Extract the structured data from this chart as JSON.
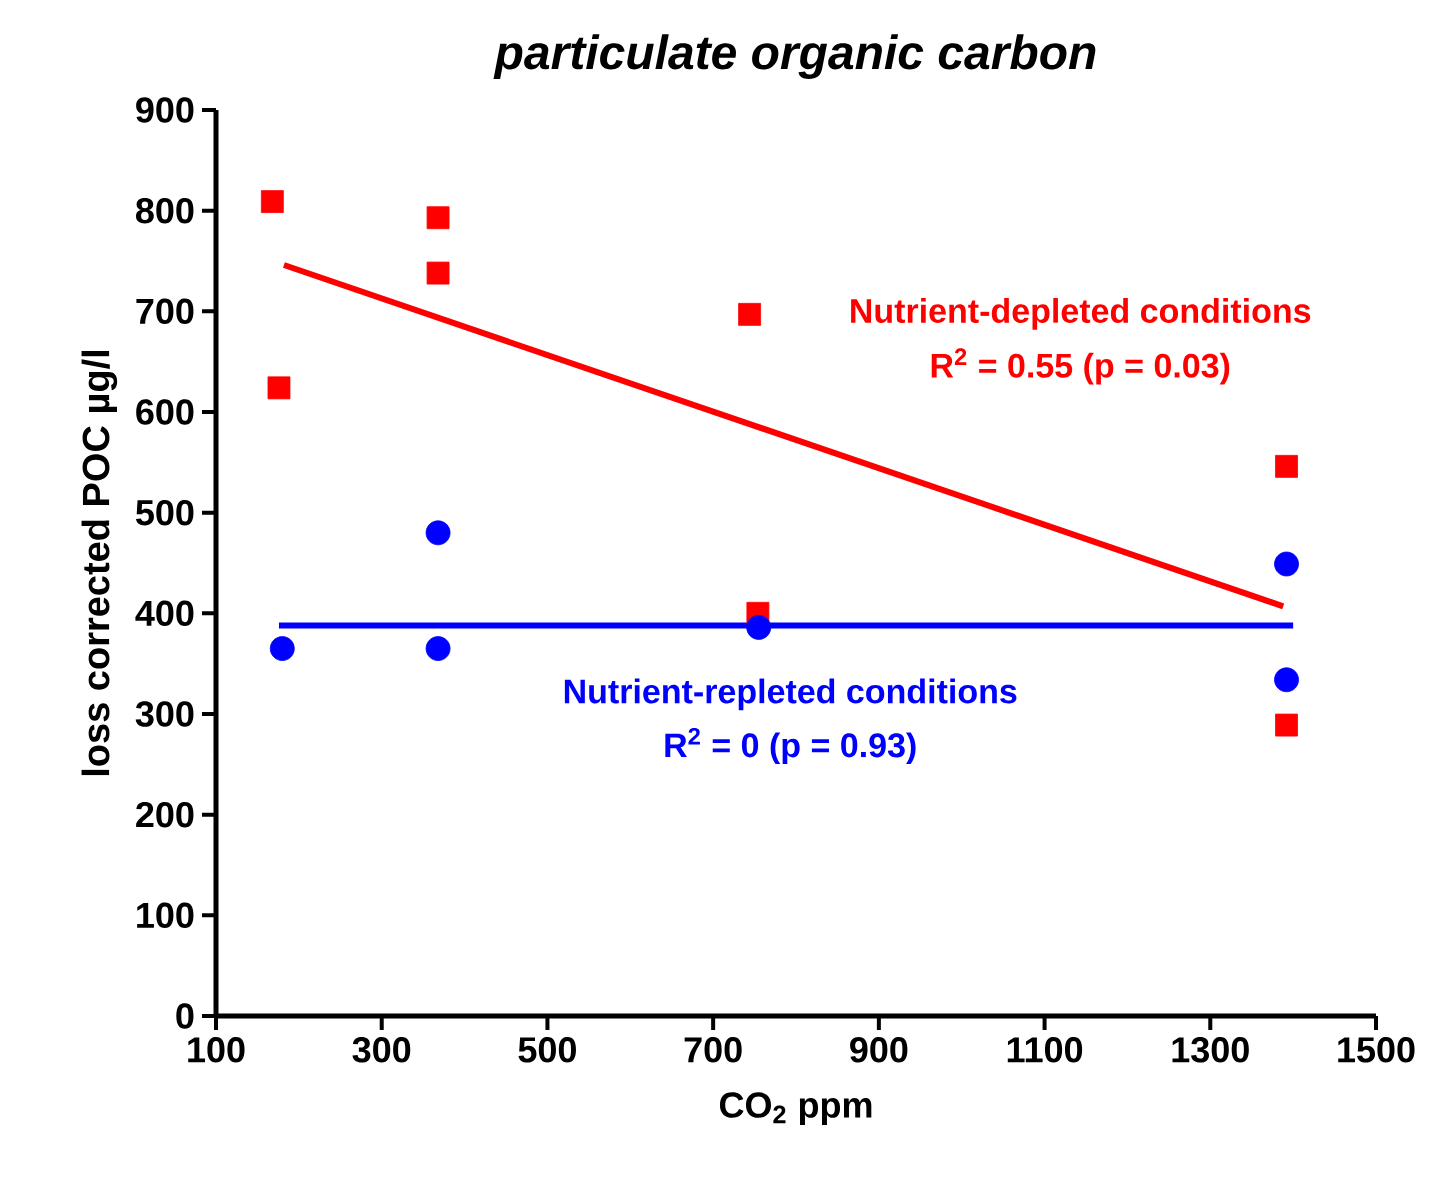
{
  "chart_data": {
    "type": "scatter",
    "title": "particulate organic carbon",
    "xlabel": "CO$_{2}$ ppm",
    "ylabel": "loss corrected POC µg/l",
    "xlim": [
      100,
      1500
    ],
    "xticks": [
      100,
      300,
      500,
      700,
      900,
      1100,
      1300,
      1500
    ],
    "ylim": [
      0,
      900
    ],
    "yticks": [
      0,
      100,
      200,
      300,
      400,
      500,
      600,
      700,
      800,
      900
    ],
    "series": [
      {
        "marker": "square",
        "color": "#ff0000",
        "x": [
          168,
          176,
          368,
          368,
          744,
          754,
          1392,
          1392
        ],
        "values": [
          809,
          624,
          793,
          738,
          697,
          400,
          546,
          289
        ]
      },
      {
        "marker": "circle",
        "color": "#0000ff",
        "x": [
          180,
          368,
          368,
          755,
          1392,
          1392
        ],
        "values": [
          365,
          480,
          365,
          386,
          449,
          334
        ]
      },
      {
        "type": "line",
        "marker": "none",
        "color": "#ff0000",
        "x": [
          182,
          1388
        ],
        "values": [
          746,
          407
        ]
      },
      {
        "type": "line",
        "marker": "none",
        "color": "#0000ff",
        "x": [
          176,
          1400
        ],
        "values": [
          388,
          388
        ]
      }
    ],
    "annotations": [
      "Nutrient-depleted conditions",
      "R$^{2}$ = 0.55 (p = 0.03)",
      "Nutrient-repleted conditions",
      "R$^{2}$ = 0 (p = 0.93)"
    ]
  }
}
